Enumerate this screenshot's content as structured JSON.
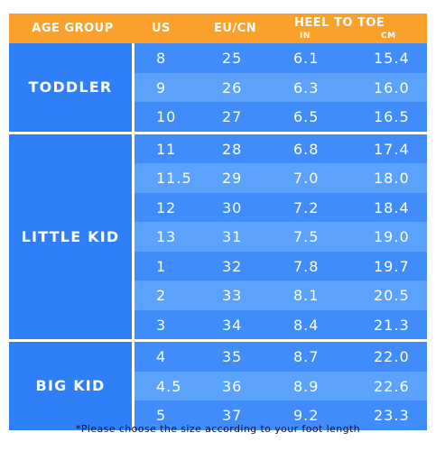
{
  "header": {
    "age_group": "AGE GROUP",
    "us": "US",
    "eu_cn": "EU/CN",
    "heel_to_toe": "HEEL TO TOE",
    "unit_in": "IN",
    "unit_cm": "CM"
  },
  "groups": [
    {
      "label": "TODDLER",
      "rows": [
        {
          "us": "8",
          "eu": "25",
          "in": "6.1",
          "cm": "15.4"
        },
        {
          "us": "9",
          "eu": "26",
          "in": "6.3",
          "cm": "16.0"
        },
        {
          "us": "10",
          "eu": "27",
          "in": "6.5",
          "cm": "16.5"
        }
      ]
    },
    {
      "label": "LITTLE KID",
      "rows": [
        {
          "us": "11",
          "eu": "28",
          "in": "6.8",
          "cm": "17.4"
        },
        {
          "us": "11.5",
          "eu": "29",
          "in": "7.0",
          "cm": "18.0"
        },
        {
          "us": "12",
          "eu": "30",
          "in": "7.2",
          "cm": "18.4"
        },
        {
          "us": "13",
          "eu": "31",
          "in": "7.5",
          "cm": "19.0"
        },
        {
          "us": "1",
          "eu": "32",
          "in": "7.8",
          "cm": "19.7"
        },
        {
          "us": "2",
          "eu": "33",
          "in": "8.1",
          "cm": "20.5"
        },
        {
          "us": "3",
          "eu": "34",
          "in": "8.4",
          "cm": "21.3"
        }
      ]
    },
    {
      "label": "BIG KID",
      "rows": [
        {
          "us": "4",
          "eu": "35",
          "in": "8.7",
          "cm": "22.0"
        },
        {
          "us": "4.5",
          "eu": "36",
          "in": "8.9",
          "cm": "22.6"
        },
        {
          "us": "5",
          "eu": "37",
          "in": "9.2",
          "cm": "23.3"
        }
      ]
    }
  ],
  "note": "*Please choose the size according to your foot length",
  "colors": {
    "header": "#fca02c",
    "group_label": "#2f7ff8",
    "row_dark": "#3f8cfa",
    "row_light": "#5aa2fb"
  }
}
